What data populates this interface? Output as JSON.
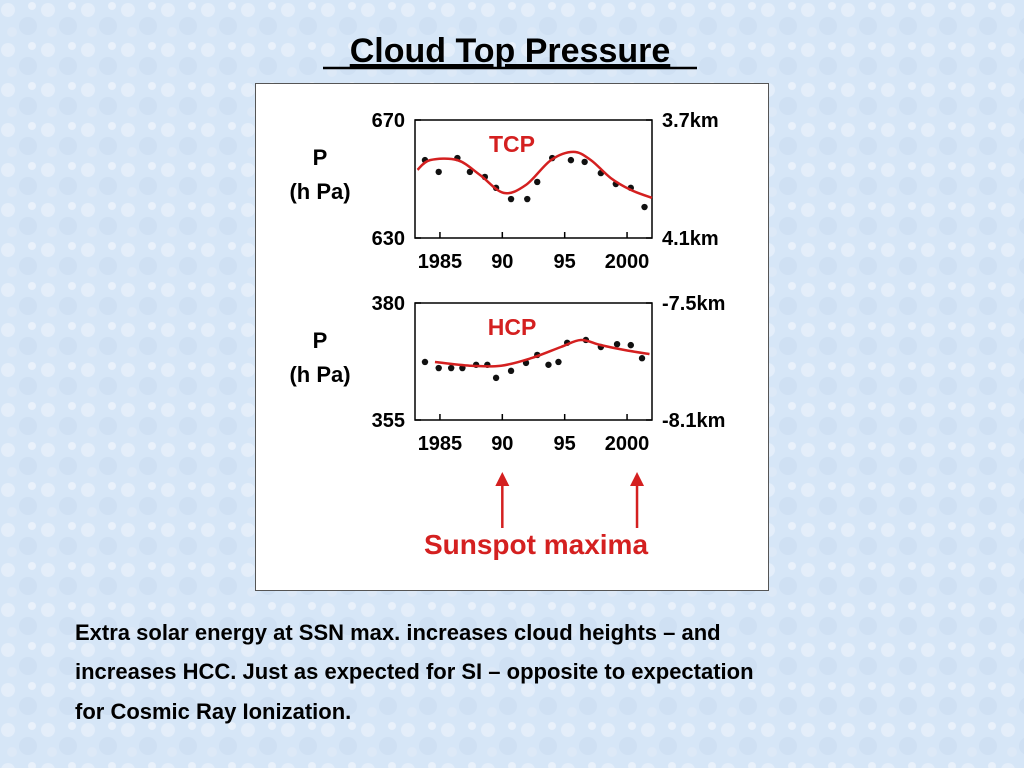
{
  "title": "Cloud Top Pressure",
  "caption": [
    "Extra solar energy at SSN max. increases cloud heights – and",
    "increases HCC. Just as expected for SI – opposite to expectation",
    "for Cosmic Ray Ionization."
  ],
  "annotation": {
    "text": "Sunspot maxima",
    "x": [
      1990,
      2000.8
    ],
    "color": "#d42020"
  },
  "chart_data": [
    {
      "type": "scatter",
      "label": "TCP",
      "label_color": "#d42020",
      "ylabel": [
        "P",
        "(h Pa)"
      ],
      "xlim": [
        1983,
        2002
      ],
      "xticks": [
        1985,
        {
          "value": 1990,
          "label": "90"
        },
        {
          "value": 1995,
          "label": "95"
        },
        2000
      ],
      "ylim": [
        670,
        630
      ],
      "yticks": [
        670,
        630
      ],
      "y2lim": [
        3.7,
        4.1
      ],
      "y2ticks": [
        {
          "value": 3.7,
          "label": "3.7km"
        },
        {
          "value": 4.1,
          "label": "4.1km"
        }
      ],
      "series": [
        {
          "style": "dots",
          "color": "#111111",
          "x": [
            1983.8,
            1984.9,
            1986.4,
            1987.4,
            1988.6,
            1989.5,
            1990.7,
            1992.0,
            1992.8,
            1994.0,
            1995.5,
            1996.6,
            1997.9,
            1999.1,
            2000.3,
            2001.4
          ],
          "values": [
            656.4,
            652.4,
            657.1,
            652.4,
            650.7,
            647.0,
            643.2,
            643.2,
            649.0,
            657.1,
            656.4,
            655.8,
            652.0,
            648.3,
            647.0,
            640.5
          ]
        },
        {
          "style": "line",
          "color": "#d42020",
          "x": [
            1983.2,
            1984.2,
            1986.4,
            1988.2,
            1990.1,
            1991.9,
            1993.9,
            1995.7,
            1997.1,
            1998.7,
            2000.3,
            2002.0
          ],
          "values": [
            653.1,
            656.4,
            656.4,
            651.4,
            645.3,
            648.0,
            656.4,
            659.2,
            656.4,
            650.3,
            646.3,
            643.6
          ]
        }
      ]
    },
    {
      "type": "scatter",
      "label": "HCP",
      "label_color": "#d42020",
      "ylabel": [
        "P",
        "(h Pa)"
      ],
      "xlim": [
        1983,
        2002
      ],
      "xticks": [
        1985,
        {
          "value": 1990,
          "label": "90"
        },
        {
          "value": 1995,
          "label": "95"
        },
        2000
      ],
      "ylim": [
        380,
        355
      ],
      "yticks": [
        380,
        355
      ],
      "y2lim": [
        -7.5,
        -8.1
      ],
      "y2ticks": [
        {
          "value": -7.5,
          "label": "-7.5km"
        },
        {
          "value": -8.1,
          "label": "-8.1km"
        }
      ],
      "series": [
        {
          "style": "dots",
          "color": "#111111",
          "x": [
            1983.8,
            1984.9,
            1985.9,
            1986.8,
            1987.9,
            1988.8,
            1989.5,
            1990.7,
            1991.9,
            1992.8,
            1993.7,
            1994.5,
            1995.2,
            1996.7,
            1997.9,
            1999.2,
            2000.3,
            2001.2
          ],
          "values": [
            367.4,
            366.1,
            366.1,
            366.1,
            366.8,
            366.8,
            364.0,
            365.5,
            367.2,
            368.9,
            366.8,
            367.4,
            371.5,
            372.1,
            370.6,
            371.2,
            371.0,
            368.2
          ]
        },
        {
          "style": "line",
          "color": "#d42020",
          "x": [
            1984.6,
            1987.4,
            1989.9,
            1992.3,
            1994.7,
            1996.3,
            1997.9,
            1999.9,
            2001.8
          ],
          "values": [
            367.4,
            366.6,
            366.6,
            368.2,
            370.6,
            372.1,
            371.0,
            369.9,
            369.1
          ]
        }
      ]
    }
  ]
}
